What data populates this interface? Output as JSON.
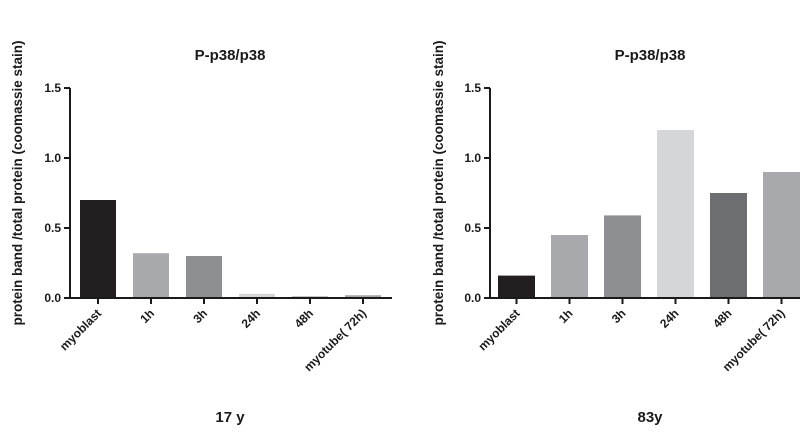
{
  "chart_data": [
    {
      "type": "bar",
      "title": "P-p38/p38",
      "ylabel": "protein band /total protein (coomassie stain)",
      "xlabel": "17 y",
      "categories": [
        "myoblast",
        "1h",
        "3h",
        "24h",
        "48h",
        "myotube( 72h)"
      ],
      "values": [
        0.7,
        0.32,
        0.3,
        0.03,
        0.01,
        0.02
      ],
      "colors": [
        "#231f20",
        "#a7a9ac",
        "#8e8f92",
        "#d5d6d8",
        "#6d6e71",
        "#a7a9ac"
      ],
      "ylim": [
        0,
        1.5
      ],
      "yticks": [
        "0.0",
        "0.5",
        "1.0",
        "1.5"
      ],
      "grid": false,
      "legend": "none"
    },
    {
      "type": "bar",
      "title": "P-p38/p38",
      "ylabel": "protein band /total protein (coomassie stain)",
      "xlabel": "83y",
      "categories": [
        "myoblast",
        "1h",
        "3h",
        "24h",
        "48h",
        "myotube( 72h)"
      ],
      "values": [
        0.16,
        0.45,
        0.59,
        1.2,
        0.75,
        0.9
      ],
      "colors": [
        "#231f20",
        "#a7a9ac",
        "#8e8f92",
        "#d5d6d8",
        "#6d6e71",
        "#a7a9ac"
      ],
      "ylim": [
        0,
        1.5
      ],
      "yticks": [
        "0.0",
        "0.5",
        "1.0",
        "1.5"
      ],
      "grid": false,
      "legend": "none"
    }
  ]
}
